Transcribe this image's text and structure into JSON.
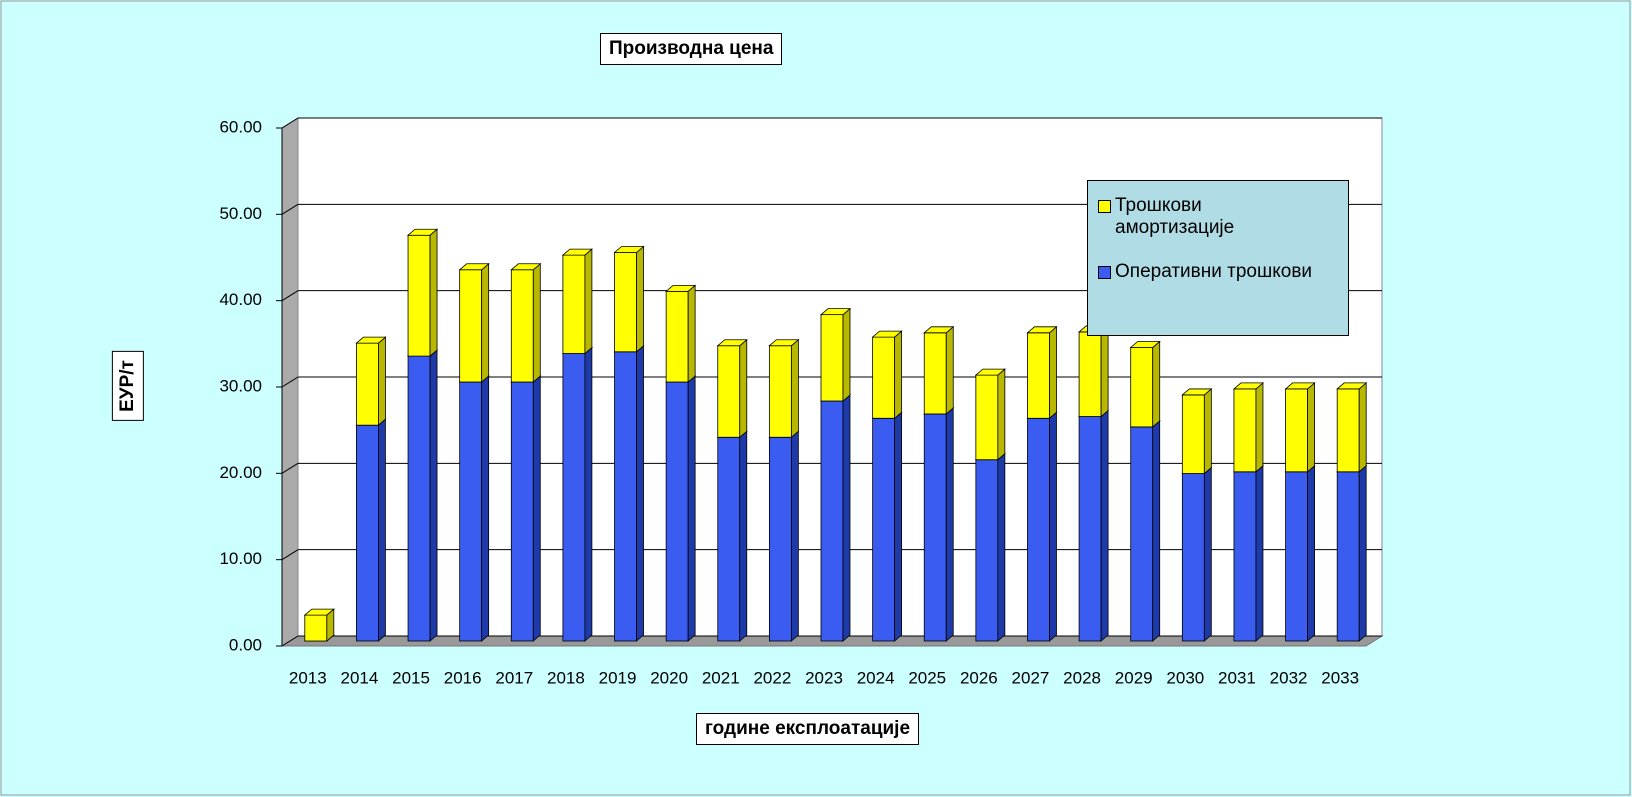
{
  "chart_data": {
    "type": "bar",
    "stacked": true,
    "title": "Производна цена",
    "x_label": "године експлоатације",
    "y_label": "ЕУР/т",
    "categories": [
      "2013",
      "2014",
      "2015",
      "2016",
      "2017",
      "2018",
      "2019",
      "2020",
      "2021",
      "2022",
      "2023",
      "2024",
      "2025",
      "2026",
      "2027",
      "2028",
      "2029",
      "2030",
      "2031",
      "2032",
      "2033"
    ],
    "series": [
      {
        "name": "Оперативни трошкови",
        "color": "#3a5cf0",
        "values": [
          0,
          25,
          33,
          30,
          30,
          33.3,
          33.5,
          30,
          23.6,
          23.6,
          27.8,
          25.8,
          26.3,
          21,
          25.8,
          26,
          24.8,
          19.4,
          19.6,
          19.6,
          19.6
        ]
      },
      {
        "name": "Трошкови амортизације",
        "color": "#ffff00",
        "values": [
          3,
          9.5,
          14,
          13,
          13,
          11.4,
          11.5,
          10.5,
          10.6,
          10.6,
          10,
          9.4,
          9.4,
          9.8,
          9.9,
          9.8,
          9.2,
          9.1,
          9.6,
          9.6,
          9.6
        ]
      }
    ],
    "ylim": [
      0,
      60
    ],
    "yticks": [
      {
        "value": 0,
        "label": "0.00"
      },
      {
        "value": 10,
        "label": "10.00"
      },
      {
        "value": 20,
        "label": "20.00"
      },
      {
        "value": 30,
        "label": "30.00"
      },
      {
        "value": 40,
        "label": "40.00"
      },
      {
        "value": 50,
        "label": "50.00"
      },
      {
        "value": 60,
        "label": "60.00"
      }
    ],
    "grid": true,
    "legend": "right"
  }
}
